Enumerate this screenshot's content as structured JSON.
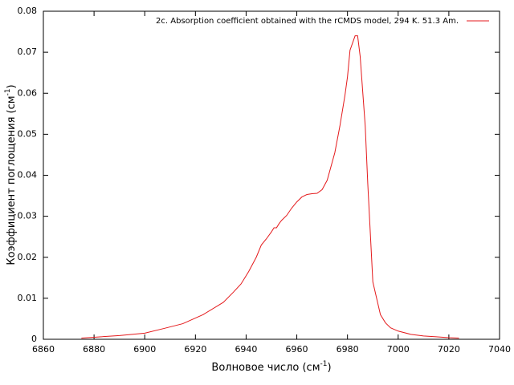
{
  "chart_data": {
    "type": "line",
    "xlabel": {
      "text": "Волновое число (см",
      "superscript": "-1",
      "end": ")"
    },
    "ylabel": {
      "text": "Коэффициент поглощения (см",
      "superscript": "-1",
      "end": ")"
    },
    "xlim": [
      6860,
      7040
    ],
    "xticks": [
      6860,
      6880,
      6900,
      6920,
      6940,
      6960,
      6980,
      7000,
      7020,
      7040
    ],
    "ylim": [
      0,
      0.08
    ],
    "yticks": [
      0,
      0.01,
      0.02,
      0.03,
      0.04,
      0.05,
      0.06,
      0.07,
      0.08
    ],
    "legend": "top-right",
    "x": [
      6875,
      6880,
      6890,
      6900,
      6908,
      6915,
      6923,
      6931,
      6935,
      6938,
      6941,
      6944,
      6946,
      6948,
      6950,
      6951,
      6952,
      6953,
      6954,
      6956,
      6958,
      6960,
      6962,
      6964,
      6966,
      6968,
      6970,
      6972,
      6975,
      6977,
      6979,
      6980,
      6981,
      6983,
      6984,
      6985,
      6987,
      6988,
      6989,
      6990,
      6993,
      6995,
      6997,
      7000,
      7005,
      7010,
      7015,
      7020,
      7024
    ],
    "series": [
      {
        "name": "2c. Absorption coefficient obtained with the rCMDS model, 294 K. 51.3 Am.",
        "color": "#e41a1c",
        "values": [
          0.0003,
          0.0005,
          0.0009,
          0.0015,
          0.0027,
          0.0038,
          0.006,
          0.009,
          0.0115,
          0.0135,
          0.0165,
          0.02,
          0.023,
          0.0245,
          0.0262,
          0.0272,
          0.0272,
          0.0282,
          0.029,
          0.0302,
          0.032,
          0.0335,
          0.0347,
          0.0353,
          0.0355,
          0.0356,
          0.0365,
          0.0388,
          0.0455,
          0.052,
          0.0595,
          0.064,
          0.0705,
          0.074,
          0.074,
          0.069,
          0.052,
          0.038,
          0.026,
          0.014,
          0.006,
          0.004,
          0.0028,
          0.002,
          0.0012,
          0.0008,
          0.0006,
          0.0004,
          0.0003
        ]
      }
    ]
  }
}
